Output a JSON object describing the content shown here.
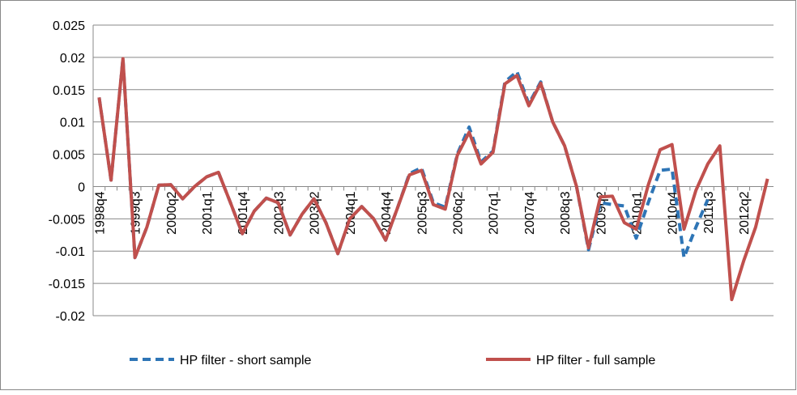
{
  "chart_data": {
    "type": "line",
    "categories": [
      "1998q4",
      null,
      null,
      "1999q3",
      null,
      null,
      "2000q2",
      null,
      null,
      "2001q1",
      null,
      null,
      "2001q4",
      null,
      null,
      "2002q3",
      null,
      null,
      "2003q2",
      null,
      null,
      "2004q1",
      null,
      null,
      "2004q4",
      null,
      null,
      "2005q3",
      null,
      null,
      "2006q2",
      null,
      null,
      "2007q1",
      null,
      null,
      "2007q4",
      null,
      null,
      "2008q3",
      null,
      null,
      "2009q2",
      null,
      null,
      "2010q1",
      null,
      null,
      "2010q4",
      null,
      null,
      "2011q3",
      null,
      null,
      "2012q2",
      null,
      null
    ],
    "series": [
      {
        "name": "HP filter - short sample",
        "color": "#2e75b6",
        "dash": true,
        "values": [
          0.0138,
          0.001,
          0.0198,
          -0.011,
          -0.0063,
          0.0002,
          0.0003,
          -0.0019,
          0.0,
          0.0015,
          0.0022,
          -0.0025,
          -0.0073,
          -0.0038,
          -0.0018,
          -0.0025,
          -0.0075,
          -0.0043,
          -0.0019,
          -0.0056,
          -0.0104,
          -0.005,
          -0.0031,
          -0.005,
          -0.0083,
          -0.0033,
          0.002,
          0.0029,
          -0.0025,
          -0.0032,
          0.005,
          0.0092,
          0.0038,
          0.0055,
          0.0162,
          0.0178,
          0.0128,
          0.0162,
          0.01,
          0.0063,
          0.0,
          -0.0098,
          -0.0025,
          -0.0028,
          -0.003,
          -0.008,
          -0.0025,
          0.0025,
          0.0027,
          -0.011,
          -0.0063,
          -0.002,
          null,
          null,
          null,
          null,
          null
        ]
      },
      {
        "name": "HP filter - full sample",
        "color": "#c0504d",
        "dash": false,
        "values": [
          0.0138,
          0.001,
          0.0198,
          -0.011,
          -0.0063,
          0.0002,
          0.0003,
          -0.0019,
          0.0,
          0.0015,
          0.0022,
          -0.0025,
          -0.0073,
          -0.0038,
          -0.0018,
          -0.0025,
          -0.0075,
          -0.0043,
          -0.0019,
          -0.0056,
          -0.0104,
          -0.005,
          -0.0031,
          -0.005,
          -0.0083,
          -0.0033,
          0.0018,
          0.0025,
          -0.0028,
          -0.0035,
          0.0048,
          0.0084,
          0.0035,
          0.0053,
          0.0159,
          0.0172,
          0.0125,
          0.016,
          0.01,
          0.0063,
          0.0,
          -0.0095,
          -0.0016,
          -0.0015,
          -0.0056,
          -0.0066,
          0.0002,
          0.0057,
          0.0065,
          -0.0066,
          -0.0006,
          0.0035,
          0.0063,
          -0.0175,
          -0.0115,
          -0.0063,
          0.0012
        ]
      }
    ],
    "ylim": [
      -0.02,
      0.025
    ],
    "yticks": [
      -0.02,
      -0.015,
      -0.01,
      -0.005,
      0,
      0.005,
      0.01,
      0.015,
      0.02,
      0.025
    ],
    "grid": true,
    "legend": "bottom"
  }
}
